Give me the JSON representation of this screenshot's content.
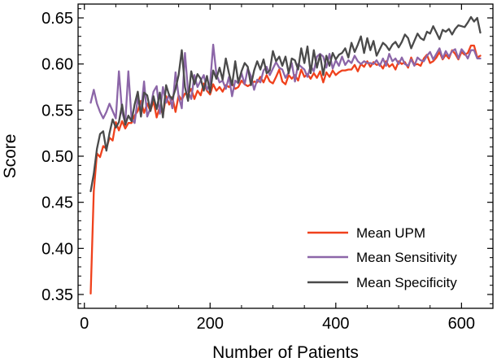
{
  "chart_data": {
    "type": "line",
    "title": "",
    "xlabel": "Number of Patients",
    "ylabel": "Score",
    "xlim": [
      -10,
      650
    ],
    "ylim": [
      0.335,
      0.665
    ],
    "xticks": [
      0,
      200,
      400,
      600
    ],
    "xtick_labels": [
      "0",
      "200",
      "400",
      "600"
    ],
    "yticks": [
      0.35,
      0.4,
      0.45,
      0.5,
      0.55,
      0.6,
      0.65
    ],
    "ytick_labels": [
      "0.35",
      "0.40",
      "0.45",
      "0.50",
      "0.55",
      "0.60",
      "0.65"
    ],
    "grid": false,
    "legend_position": "bottom-right",
    "series": [
      {
        "name": "Mean UPM",
        "color": "#f0411c",
        "x": [
          10,
          15,
          20,
          25,
          30,
          35,
          40,
          45,
          50,
          55,
          60,
          65,
          70,
          75,
          80,
          85,
          90,
          95,
          100,
          105,
          110,
          115,
          120,
          125,
          130,
          135,
          140,
          145,
          150,
          155,
          160,
          165,
          170,
          175,
          180,
          185,
          190,
          195,
          200,
          205,
          210,
          215,
          220,
          225,
          230,
          235,
          240,
          245,
          250,
          255,
          260,
          265,
          270,
          275,
          280,
          285,
          290,
          295,
          300,
          305,
          310,
          315,
          320,
          325,
          330,
          335,
          340,
          345,
          350,
          355,
          360,
          365,
          370,
          375,
          380,
          385,
          390,
          395,
          400,
          405,
          410,
          415,
          420,
          425,
          430,
          435,
          440,
          445,
          450,
          455,
          460,
          465,
          470,
          475,
          480,
          485,
          490,
          495,
          500,
          505,
          510,
          515,
          520,
          525,
          530,
          535,
          540,
          545,
          550,
          555,
          560,
          565,
          570,
          575,
          580,
          585,
          590,
          595,
          600,
          605,
          610,
          615,
          620,
          625,
          630
        ],
        "values": [
          0.351,
          0.462,
          0.503,
          0.499,
          0.511,
          0.508,
          0.52,
          0.517,
          0.537,
          0.528,
          0.538,
          0.53,
          0.536,
          0.536,
          0.544,
          0.549,
          0.56,
          0.547,
          0.557,
          0.549,
          0.56,
          0.542,
          0.554,
          0.545,
          0.565,
          0.556,
          0.564,
          0.548,
          0.566,
          0.561,
          0.568,
          0.567,
          0.573,
          0.562,
          0.571,
          0.566,
          0.579,
          0.571,
          0.567,
          0.578,
          0.571,
          0.575,
          0.57,
          0.577,
          0.575,
          0.579,
          0.573,
          0.575,
          0.582,
          0.578,
          0.576,
          0.578,
          0.581,
          0.58,
          0.586,
          0.58,
          0.588,
          0.581,
          0.579,
          0.586,
          0.594,
          0.581,
          0.578,
          0.588,
          0.584,
          0.588,
          0.582,
          0.594,
          0.586,
          0.589,
          0.584,
          0.59,
          0.585,
          0.592,
          0.58,
          0.591,
          0.586,
          0.593,
          0.588,
          0.591,
          0.593,
          0.593,
          0.594,
          0.594,
          0.599,
          0.592,
          0.6,
          0.597,
          0.603,
          0.597,
          0.602,
          0.599,
          0.6,
          0.595,
          0.603,
          0.597,
          0.6,
          0.594,
          0.603,
          0.6,
          0.602,
          0.596,
          0.607,
          0.599,
          0.6,
          0.598,
          0.606,
          0.61,
          0.601,
          0.603,
          0.607,
          0.613,
          0.605,
          0.61,
          0.606,
          0.615,
          0.611,
          0.605,
          0.613,
          0.61,
          0.612,
          0.62,
          0.62,
          0.607,
          0.609
        ]
      },
      {
        "name": "Mean Sensitivity",
        "color": "#8c66a8",
        "x": [
          10,
          15,
          20,
          25,
          30,
          35,
          40,
          45,
          50,
          55,
          60,
          65,
          70,
          75,
          80,
          85,
          90,
          95,
          100,
          105,
          110,
          115,
          120,
          125,
          130,
          135,
          140,
          145,
          150,
          155,
          160,
          165,
          170,
          175,
          180,
          185,
          190,
          195,
          200,
          205,
          210,
          215,
          220,
          225,
          230,
          235,
          240,
          245,
          250,
          255,
          260,
          265,
          270,
          275,
          280,
          285,
          290,
          295,
          300,
          305,
          310,
          315,
          320,
          325,
          330,
          335,
          340,
          345,
          350,
          355,
          360,
          365,
          370,
          375,
          380,
          385,
          390,
          395,
          400,
          405,
          410,
          415,
          420,
          425,
          430,
          435,
          440,
          445,
          450,
          455,
          460,
          465,
          470,
          475,
          480,
          485,
          490,
          495,
          500,
          505,
          510,
          515,
          520,
          525,
          530,
          535,
          540,
          545,
          550,
          555,
          560,
          565,
          570,
          575,
          580,
          585,
          590,
          595,
          600,
          605,
          610,
          615,
          620,
          625,
          630
        ],
        "values": [
          0.558,
          0.572,
          0.557,
          0.548,
          0.541,
          0.548,
          0.557,
          0.549,
          0.541,
          0.592,
          0.548,
          0.536,
          0.592,
          0.541,
          0.536,
          0.563,
          0.548,
          0.581,
          0.543,
          0.552,
          0.57,
          0.576,
          0.546,
          0.575,
          0.558,
          0.567,
          0.552,
          0.591,
          0.565,
          0.552,
          0.612,
          0.57,
          0.562,
          0.588,
          0.575,
          0.582,
          0.588,
          0.572,
          0.579,
          0.621,
          0.589,
          0.58,
          0.582,
          0.573,
          0.586,
          0.565,
          0.582,
          0.579,
          0.59,
          0.578,
          0.595,
          0.587,
          0.572,
          0.583,
          0.58,
          0.593,
          0.597,
          0.588,
          0.595,
          0.602,
          0.596,
          0.594,
          0.585,
          0.591,
          0.601,
          0.581,
          0.6,
          0.597,
          0.594,
          0.586,
          0.598,
          0.592,
          0.608,
          0.611,
          0.608,
          0.596,
          0.611,
          0.595,
          0.604,
          0.598,
          0.608,
          0.599,
          0.604,
          0.601,
          0.609,
          0.603,
          0.6,
          0.603,
          0.601,
          0.601,
          0.6,
          0.604,
          0.598,
          0.606,
          0.598,
          0.611,
          0.603,
          0.606,
          0.6,
          0.607,
          0.6,
          0.598,
          0.605,
          0.598,
          0.607,
          0.604,
          0.603,
          0.609,
          0.613,
          0.605,
          0.611,
          0.617,
          0.606,
          0.614,
          0.608,
          0.614,
          0.616,
          0.606,
          0.616,
          0.612,
          0.606,
          0.615,
          0.615,
          0.606,
          0.606
        ]
      },
      {
        "name": "Mean Specificity",
        "color": "#4a4a4a",
        "x": [
          10,
          15,
          20,
          25,
          30,
          35,
          40,
          45,
          50,
          55,
          60,
          65,
          70,
          75,
          80,
          85,
          90,
          95,
          100,
          105,
          110,
          115,
          120,
          125,
          130,
          135,
          140,
          145,
          150,
          155,
          160,
          165,
          170,
          175,
          180,
          185,
          190,
          195,
          200,
          205,
          210,
          215,
          220,
          225,
          230,
          235,
          240,
          245,
          250,
          255,
          260,
          265,
          270,
          275,
          280,
          285,
          290,
          295,
          300,
          305,
          310,
          315,
          320,
          325,
          330,
          335,
          340,
          345,
          350,
          355,
          360,
          365,
          370,
          375,
          380,
          385,
          390,
          395,
          400,
          405,
          410,
          415,
          420,
          425,
          430,
          435,
          440,
          445,
          450,
          455,
          460,
          465,
          470,
          475,
          480,
          485,
          490,
          495,
          500,
          505,
          510,
          515,
          520,
          525,
          530,
          535,
          540,
          545,
          550,
          555,
          560,
          565,
          570,
          575,
          580,
          585,
          590,
          595,
          600,
          605,
          610,
          615,
          620,
          625,
          630
        ],
        "values": [
          0.462,
          0.481,
          0.508,
          0.524,
          0.527,
          0.506,
          0.525,
          0.54,
          0.531,
          0.537,
          0.556,
          0.534,
          0.544,
          0.538,
          0.556,
          0.57,
          0.543,
          0.569,
          0.566,
          0.549,
          0.565,
          0.551,
          0.569,
          0.542,
          0.577,
          0.566,
          0.562,
          0.573,
          0.588,
          0.615,
          0.575,
          0.56,
          0.592,
          0.578,
          0.589,
          0.584,
          0.571,
          0.587,
          0.569,
          0.593,
          0.584,
          0.596,
          0.583,
          0.606,
          0.59,
          0.577,
          0.603,
          0.58,
          0.592,
          0.601,
          0.597,
          0.577,
          0.593,
          0.603,
          0.594,
          0.605,
          0.59,
          0.593,
          0.614,
          0.603,
          0.608,
          0.598,
          0.608,
          0.59,
          0.606,
          0.604,
          0.594,
          0.617,
          0.601,
          0.619,
          0.59,
          0.615,
          0.596,
          0.61,
          0.588,
          0.609,
          0.598,
          0.612,
          0.605,
          0.61,
          0.612,
          0.617,
          0.607,
          0.623,
          0.613,
          0.621,
          0.63,
          0.612,
          0.628,
          0.615,
          0.625,
          0.609,
          0.616,
          0.623,
          0.62,
          0.615,
          0.621,
          0.624,
          0.618,
          0.624,
          0.632,
          0.628,
          0.617,
          0.625,
          0.633,
          0.628,
          0.626,
          0.635,
          0.633,
          0.641,
          0.634,
          0.627,
          0.637,
          0.635,
          0.638,
          0.632,
          0.638,
          0.642,
          0.641,
          0.64,
          0.645,
          0.651,
          0.646,
          0.65,
          0.634
        ]
      }
    ]
  }
}
